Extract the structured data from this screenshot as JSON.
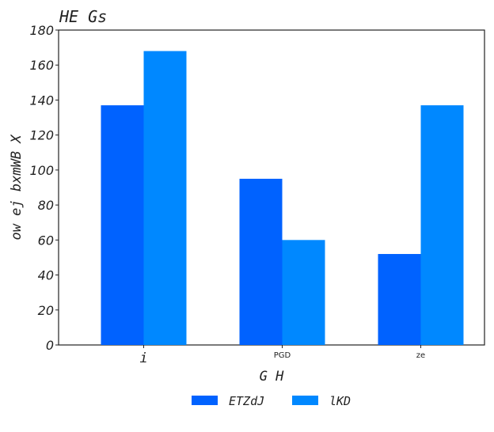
{
  "chart_data": {
    "type": "bar",
    "title": "HE  Gs",
    "xlabel": "G  H",
    "ylabel": "ow ej bxmWB X",
    "categories": [
      "i",
      "PGD",
      "ze"
    ],
    "series": [
      {
        "name": "ETZdJ",
        "values": [
          137,
          95,
          52
        ],
        "color": "#0062ff"
      },
      {
        "name": "lKD",
        "values": [
          168,
          60,
          137
        ],
        "color": "#0088ff"
      }
    ],
    "ylim": [
      0,
      180
    ],
    "yticks": [
      0,
      20,
      40,
      60,
      80,
      100,
      120,
      140,
      160,
      180
    ],
    "grid": false,
    "legend": "bottom-center"
  }
}
